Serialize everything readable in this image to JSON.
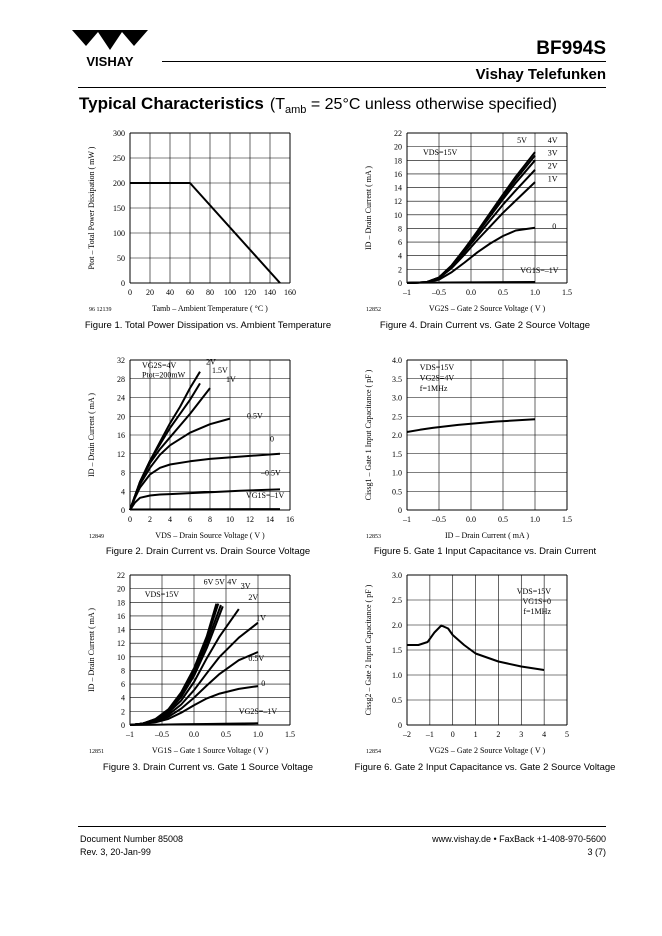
{
  "header": {
    "logo_text": "VISHAY",
    "part_number": "BF994S",
    "brand": "Vishay Telefunken"
  },
  "section": {
    "title": "Typical Characteristics",
    "condition": "(T",
    "condition_sub": "amb",
    "condition_rest": " = 25°C unless otherwise specified)"
  },
  "footer": {
    "doc_number": "Document Number 85008",
    "revision": "Rev. 3, 20-Jan-99",
    "contact": "www.vishay.de • FaxBack +1-408-970-5600",
    "page": "3 (7)"
  },
  "chart_data": [
    {
      "id": "fig1",
      "type": "line",
      "ref": "96 12139",
      "caption": "Figure 1. Total Power Dissipation vs. Ambient Temperature",
      "ylabel": "Ptot – Total Power Dissipation ( mW )",
      "xlabel": "Tamb – Ambient Temperature ( °C )",
      "xlim": [
        0,
        160
      ],
      "ylim": [
        0,
        300
      ],
      "grid": true,
      "xticks": [
        "0",
        "20",
        "40",
        "60",
        "80",
        "100",
        "120",
        "140",
        "160"
      ],
      "yticks": [
        "0",
        "50",
        "100",
        "150",
        "200",
        "250",
        "300"
      ],
      "series": [
        {
          "name": "Ptot",
          "x": [
            0,
            60,
            150
          ],
          "y": [
            200,
            200,
            0
          ]
        }
      ],
      "annotations": []
    },
    {
      "id": "fig2",
      "type": "line",
      "ref": "12849",
      "caption": "Figure 2. Drain Current vs. Drain Source Voltage",
      "ylabel": "ID – Drain Current ( mA )",
      "xlabel": "VDS – Drain Source Voltage ( V )",
      "xlim": [
        0,
        16
      ],
      "ylim": [
        0,
        32
      ],
      "grid": true,
      "xticks": [
        "0",
        "2",
        "4",
        "6",
        "8",
        "10",
        "12",
        "14",
        "16"
      ],
      "yticks": [
        "0",
        "4",
        "8",
        "12",
        "16",
        "20",
        "24",
        "28",
        "32"
      ],
      "series": [
        {
          "name": "2V",
          "x": [
            0,
            0.5,
            1,
            2,
            3,
            4,
            5,
            6,
            7
          ],
          "y": [
            0,
            3,
            6,
            10.5,
            14.5,
            18.5,
            22,
            26,
            29.5
          ]
        },
        {
          "name": "1.5V",
          "x": [
            0,
            0.5,
            1,
            2,
            3,
            4,
            5,
            6,
            7
          ],
          "y": [
            0,
            3,
            6,
            10.5,
            14,
            17.5,
            20.5,
            23.5,
            27
          ]
        },
        {
          "name": "1V",
          "x": [
            0,
            0.5,
            1,
            2,
            3,
            4,
            5,
            6,
            8
          ],
          "y": [
            0,
            3,
            6,
            10,
            13,
            15.5,
            18,
            20.5,
            26
          ]
        },
        {
          "name": "0.5V",
          "x": [
            0,
            0.5,
            1,
            2,
            3,
            4,
            6,
            8,
            10
          ],
          "y": [
            0,
            3,
            5.5,
            9,
            11.8,
            13.8,
            16.5,
            18.3,
            19.5
          ]
        },
        {
          "name": "0",
          "x": [
            0,
            0.5,
            1,
            2,
            3,
            4,
            6,
            8,
            11,
            15
          ],
          "y": [
            0,
            2.6,
            4.8,
            7.6,
            9,
            9.7,
            10.4,
            10.9,
            11.4,
            12
          ]
        },
        {
          "name": "-0.5V",
          "x": [
            0,
            0.5,
            1,
            2,
            3,
            4,
            6,
            8,
            11,
            15
          ],
          "y": [
            0,
            1.6,
            2.6,
            3.1,
            3.3,
            3.4,
            3.6,
            3.8,
            4.1,
            4.4
          ]
        },
        {
          "name": "-1V",
          "x": [
            0,
            15
          ],
          "y": [
            0.1,
            0.2
          ]
        }
      ],
      "annotations": [
        {
          "text": "VG2S=4V",
          "x": 1.2,
          "y": 30.3,
          "anchor": "start"
        },
        {
          "text": "Ptot=200mW",
          "x": 1.2,
          "y": 28.3,
          "anchor": "start"
        },
        {
          "text": "2V",
          "x": 7.6,
          "y": 31.0,
          "anchor": "start"
        },
        {
          "text": "1.5V",
          "x": 8.2,
          "y": 29.2,
          "anchor": "start"
        },
        {
          "text": "1V",
          "x": 9.6,
          "y": 27.3,
          "anchor": "start"
        },
        {
          "text": "0.5V",
          "x": 11.7,
          "y": 19.5,
          "anchor": "start"
        },
        {
          "text": "0",
          "x": 14.0,
          "y": 14.6,
          "anchor": "start"
        },
        {
          "text": "–0.5V",
          "x": 13.1,
          "y": 7.4,
          "anchor": "start"
        },
        {
          "text": "VG1S=–1V",
          "x": 11.6,
          "y": 2.6,
          "anchor": "start"
        }
      ]
    },
    {
      "id": "fig3",
      "type": "line",
      "ref": "12851",
      "caption": "Figure 3. Drain Current vs. Gate 1 Source Voltage",
      "ylabel": "ID – Drain Current ( mA )",
      "xlabel": "VG1S – Gate 1 Source Voltage ( V )",
      "xlim": [
        -1,
        1.5
      ],
      "ylim": [
        0,
        22
      ],
      "grid": true,
      "xticks": [
        "–1",
        "–0.5",
        "0.0",
        "0.5",
        "1.0",
        "1.5"
      ],
      "yticks": [
        "0",
        "2",
        "4",
        "6",
        "8",
        "10",
        "12",
        "14",
        "16",
        "18",
        "20",
        "22"
      ],
      "series": [
        {
          "name": "6V",
          "x": [
            -1,
            -0.8,
            -0.6,
            -0.4,
            -0.2,
            0,
            0.2,
            0.35
          ],
          "y": [
            0,
            0.2,
            0.9,
            2.3,
            4.8,
            8.3,
            13,
            17.8
          ]
        },
        {
          "name": "5V",
          "x": [
            -1,
            -0.8,
            -0.6,
            -0.4,
            -0.2,
            0,
            0.2,
            0.38
          ],
          "y": [
            0,
            0.2,
            0.85,
            2.2,
            4.6,
            8.0,
            12.6,
            17.8
          ]
        },
        {
          "name": "4V",
          "x": [
            -1,
            -0.8,
            -0.6,
            -0.4,
            -0.2,
            0,
            0.2,
            0.42
          ],
          "y": [
            0,
            0.2,
            0.8,
            2.1,
            4.4,
            7.6,
            12,
            17.6
          ]
        },
        {
          "name": "3V",
          "x": [
            -1,
            -0.8,
            -0.6,
            -0.4,
            -0.2,
            0,
            0.2,
            0.45
          ],
          "y": [
            0,
            0.2,
            0.75,
            2.0,
            4.1,
            7.2,
            11.3,
            17.4
          ]
        },
        {
          "name": "2V",
          "x": [
            -1,
            -0.8,
            -0.6,
            -0.4,
            -0.2,
            0,
            0.2,
            0.4,
            0.7
          ],
          "y": [
            0,
            0.2,
            0.7,
            1.8,
            3.6,
            6.3,
            9.8,
            13,
            17
          ]
        },
        {
          "name": "1V",
          "x": [
            -1,
            -0.8,
            -0.6,
            -0.4,
            -0.2,
            0,
            0.2,
            0.4,
            0.7,
            1.0
          ],
          "y": [
            0,
            0.2,
            0.6,
            1.5,
            3,
            5.1,
            7.6,
            10,
            12.8,
            15
          ]
        },
        {
          "name": "0.5V",
          "x": [
            -1,
            -0.8,
            -0.6,
            -0.4,
            -0.2,
            0,
            0.2,
            0.4,
            0.7,
            1.0
          ],
          "y": [
            0,
            0.2,
            0.5,
            1.2,
            2.4,
            4.0,
            5.8,
            7.5,
            9.5,
            10.7
          ]
        },
        {
          "name": "0",
          "x": [
            -1,
            -0.8,
            -0.6,
            -0.4,
            -0.2,
            0,
            0.2,
            0.4,
            0.7,
            1.0
          ],
          "y": [
            0,
            0.15,
            0.4,
            0.9,
            1.8,
            2.9,
            3.9,
            4.6,
            5.3,
            5.7
          ]
        },
        {
          "name": "-1V",
          "x": [
            -1,
            -0.6,
            -0.2,
            0.2,
            0.6,
            1.0
          ],
          "y": [
            0,
            0.05,
            0.1,
            0.15,
            0.2,
            0.25
          ]
        }
      ],
      "annotations": [
        {
          "text": "VDS=15V",
          "x": -0.77,
          "y": 18.8,
          "anchor": "start"
        },
        {
          "text": "6V",
          "x": 0.15,
          "y": 20.6,
          "anchor": "start"
        },
        {
          "text": "5V",
          "x": 0.33,
          "y": 20.6,
          "anchor": "start"
        },
        {
          "text": "4V",
          "x": 0.52,
          "y": 20.6,
          "anchor": "start"
        },
        {
          "text": "3V",
          "x": 0.73,
          "y": 20.0,
          "anchor": "start"
        },
        {
          "text": "2V",
          "x": 0.85,
          "y": 18.3,
          "anchor": "start"
        },
        {
          "text": "1V",
          "x": 0.97,
          "y": 15.3,
          "anchor": "start"
        },
        {
          "text": "0.5V",
          "x": 0.85,
          "y": 9.4,
          "anchor": "start"
        },
        {
          "text": "0",
          "x": 1.05,
          "y": 5.7,
          "anchor": "start"
        },
        {
          "text": "VG2S=–1V",
          "x": 0.7,
          "y": 1.6,
          "anchor": "start"
        }
      ]
    },
    {
      "id": "fig4",
      "type": "line",
      "ref": "12852",
      "caption": "Figure 4. Drain Current vs. Gate 2 Source Voltage",
      "ylabel": "ID – Drain Current ( mA )",
      "xlabel": "VG2S – Gate 2 Source Voltage ( V )",
      "xlim": [
        -1,
        1.5
      ],
      "ylim": [
        0,
        22
      ],
      "grid": true,
      "xticks": [
        "–1",
        "–0.5",
        "0.0",
        "0.5",
        "1.0",
        "1.5"
      ],
      "yticks": [
        "0",
        "2",
        "4",
        "6",
        "8",
        "10",
        "12",
        "14",
        "16",
        "18",
        "20",
        "22"
      ],
      "series": [
        {
          "name": "5V",
          "x": [
            -1,
            -0.7,
            -0.5,
            -0.3,
            -0.1,
            0.1,
            0.3,
            0.5,
            0.7,
            1.0
          ],
          "y": [
            0,
            0.1,
            0.8,
            2.6,
            5,
            7.6,
            10.3,
            13,
            15.6,
            19.2
          ]
        },
        {
          "name": "4V",
          "x": [
            -1,
            -0.7,
            -0.5,
            -0.3,
            -0.1,
            0.1,
            0.3,
            0.5,
            0.7,
            1.0
          ],
          "y": [
            0,
            0.1,
            0.8,
            2.6,
            5,
            7.5,
            10.1,
            12.7,
            15.2,
            18.7
          ]
        },
        {
          "name": "3V",
          "x": [
            -1,
            -0.7,
            -0.5,
            -0.3,
            -0.1,
            0.1,
            0.3,
            0.5,
            0.7,
            1.0
          ],
          "y": [
            0,
            0.1,
            0.8,
            2.5,
            4.9,
            7.3,
            9.8,
            12.3,
            14.7,
            18.0
          ]
        },
        {
          "name": "2V",
          "x": [
            -1,
            -0.7,
            -0.5,
            -0.3,
            -0.1,
            0.1,
            0.3,
            0.5,
            0.7,
            1.0
          ],
          "y": [
            0,
            0.1,
            0.75,
            2.4,
            4.6,
            6.9,
            9.2,
            11.5,
            13.6,
            16.6
          ]
        },
        {
          "name": "1V",
          "x": [
            -1,
            -0.7,
            -0.5,
            -0.3,
            -0.1,
            0.1,
            0.3,
            0.5,
            0.7,
            1.0
          ],
          "y": [
            0,
            0.1,
            0.7,
            2.2,
            4.2,
            6.3,
            8.3,
            10.3,
            12.1,
            14.8
          ]
        },
        {
          "name": "0",
          "x": [
            -1,
            -0.7,
            -0.5,
            -0.3,
            -0.1,
            0.1,
            0.3,
            0.5,
            0.7,
            1.0
          ],
          "y": [
            0,
            0.1,
            0.5,
            1.6,
            3.0,
            4.5,
            5.8,
            6.9,
            7.7,
            8.1
          ]
        },
        {
          "name": "-1V",
          "x": [
            -1,
            1.0
          ],
          "y": [
            0.05,
            0.15
          ]
        }
      ],
      "annotations": [
        {
          "text": "VDS=15V",
          "x": -0.75,
          "y": 18.8,
          "anchor": "start"
        },
        {
          "text": "5V",
          "x": 0.72,
          "y": 20.5,
          "anchor": "start"
        },
        {
          "text": "4V",
          "x": 1.2,
          "y": 20.5,
          "anchor": "start"
        },
        {
          "text": "3V",
          "x": 1.2,
          "y": 18.7,
          "anchor": "start"
        },
        {
          "text": "2V",
          "x": 1.2,
          "y": 16.8,
          "anchor": "start"
        },
        {
          "text": "1V",
          "x": 1.2,
          "y": 14.9,
          "anchor": "start"
        },
        {
          "text": "0",
          "x": 1.27,
          "y": 7.9,
          "anchor": "start"
        },
        {
          "text": "VG1S=–1V",
          "x": 0.77,
          "y": 1.5,
          "anchor": "start"
        }
      ]
    },
    {
      "id": "fig5",
      "type": "line",
      "ref": "12853",
      "caption": "Figure 5. Gate 1 Input Capacitance vs. Drain Current",
      "ylabel": "Cissg1 – Gate 1 Input Capacitance ( pF )",
      "xlabel": "ID – Drain Current ( mA )",
      "xlim": [
        -1,
        1.5
      ],
      "ylim": [
        0,
        4.0
      ],
      "grid": true,
      "xticks": [
        "–1",
        "–0.5",
        "0.0",
        "0.5",
        "1.0",
        "1.5"
      ],
      "yticks": [
        "0",
        "0.5",
        "1.0",
        "1.5",
        "2.0",
        "2.5",
        "3.0",
        "3.5",
        "4.0"
      ],
      "series": [
        {
          "name": "Cissg1",
          "x": [
            -1,
            -0.8,
            -0.6,
            -0.4,
            -0.2,
            0,
            0.2,
            0.4,
            0.6,
            0.8,
            1.0
          ],
          "y": [
            2.08,
            2.14,
            2.19,
            2.23,
            2.27,
            2.3,
            2.33,
            2.36,
            2.38,
            2.4,
            2.42
          ]
        }
      ],
      "annotations": [
        {
          "text": "VDS=15V",
          "x": -0.8,
          "y": 3.73,
          "anchor": "start"
        },
        {
          "text": "VG2S=4V",
          "x": -0.8,
          "y": 3.45,
          "anchor": "start"
        },
        {
          "text": "f=1MHz",
          "x": -0.8,
          "y": 3.17,
          "anchor": "start"
        }
      ]
    },
    {
      "id": "fig6",
      "type": "line",
      "ref": "12854",
      "caption": "Figure 6. Gate 2 Input Capacitance vs. Gate 2 Source Voltage",
      "ylabel": "Cissg2 – Gate 2 Input Capacitance ( pF )",
      "xlabel": "VG2S – Gate 2 Source Voltage ( V )",
      "xlim": [
        -2,
        5
      ],
      "ylim": [
        0,
        3.0
      ],
      "grid": true,
      "xticks": [
        "–2",
        "–1",
        "0",
        "1",
        "2",
        "3",
        "4",
        "5"
      ],
      "yticks": [
        "0",
        "0.5",
        "1.0",
        "1.5",
        "2.0",
        "2.5",
        "3.0"
      ],
      "series": [
        {
          "name": "Cissg2",
          "x": [
            -2,
            -1.5,
            -1.1,
            -0.8,
            -0.5,
            -0.2,
            0,
            0.5,
            1,
            2,
            3,
            4
          ],
          "y": [
            1.6,
            1.6,
            1.66,
            1.85,
            1.99,
            1.93,
            1.8,
            1.6,
            1.43,
            1.27,
            1.17,
            1.1
          ]
        }
      ],
      "annotations": [
        {
          "text": "VDS=15V",
          "x": 4.3,
          "y": 2.62,
          "anchor": "end"
        },
        {
          "text": "VG1S=0",
          "x": 4.3,
          "y": 2.42,
          "anchor": "end"
        },
        {
          "text": "f=1MHz",
          "x": 4.3,
          "y": 2.22,
          "anchor": "end"
        }
      ]
    }
  ]
}
